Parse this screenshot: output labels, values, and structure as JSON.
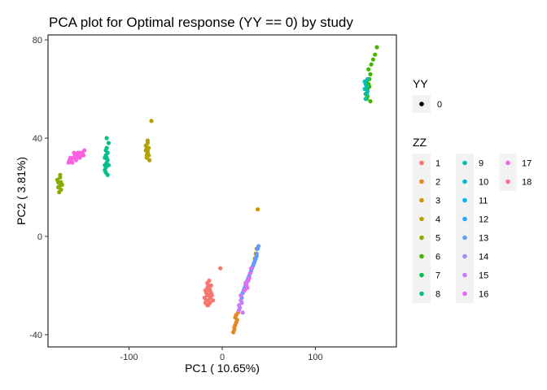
{
  "chart_data": {
    "type": "scatter",
    "title": "PCA plot for Optimal response (YY == 0) by study",
    "xlabel": "PC1 ( 10.65%)",
    "ylabel": "PC2 ( 3.81%)",
    "xlim": [
      -187,
      187
    ],
    "ylim": [
      -45,
      82
    ],
    "x_ticks": [
      -100,
      0,
      100
    ],
    "y_ticks": [
      -40,
      0,
      40,
      80
    ],
    "x_tick_labels": [
      "-100",
      "0",
      "100"
    ],
    "y_tick_labels": [
      "-40",
      "0",
      "40",
      "80"
    ],
    "grid": false,
    "legend_position": "right",
    "legend_shape": {
      "title": "YY",
      "entries": [
        {
          "label": "0"
        }
      ]
    },
    "legend_color": {
      "title": "ZZ",
      "entries": [
        {
          "label": "1",
          "color": "#F8766D"
        },
        {
          "label": "2",
          "color": "#E7851E"
        },
        {
          "label": "3",
          "color": "#D09400"
        },
        {
          "label": "4",
          "color": "#B2A100"
        },
        {
          "label": "5",
          "color": "#89AC00"
        },
        {
          "label": "6",
          "color": "#45B500"
        },
        {
          "label": "7",
          "color": "#00BC51"
        },
        {
          "label": "8",
          "color": "#00C087"
        },
        {
          "label": "9",
          "color": "#00C0B2"
        },
        {
          "label": "10",
          "color": "#00BCD6"
        },
        {
          "label": "11",
          "color": "#00B3F2"
        },
        {
          "label": "12",
          "color": "#29A3FF"
        },
        {
          "label": "13",
          "color": "#619CFF"
        },
        {
          "label": "14",
          "color": "#9C8DFF"
        },
        {
          "label": "15",
          "color": "#C77CFF"
        },
        {
          "label": "16",
          "color": "#E46DF6"
        },
        {
          "label": "17",
          "color": "#F763E0"
        },
        {
          "label": "18",
          "color": "#FF66A8"
        }
      ]
    },
    "series": [
      {
        "name": "1",
        "color": "#F8766D",
        "points": [
          [
            -15,
            -20
          ],
          [
            -14,
            -22
          ],
          [
            -16,
            -24
          ],
          [
            -13,
            -25
          ],
          [
            -17,
            -26
          ],
          [
            -12,
            -23
          ],
          [
            -18,
            -22
          ],
          [
            -15,
            -28
          ],
          [
            -14,
            -21
          ],
          [
            -16,
            -19
          ],
          [
            -13,
            -27
          ],
          [
            -19,
            -25
          ],
          [
            -11,
            -24
          ],
          [
            -15,
            -26
          ],
          [
            -17,
            -23
          ],
          [
            -14,
            -18
          ],
          [
            -16,
            -28
          ],
          [
            -12,
            -20
          ],
          [
            -18,
            -27
          ],
          [
            -13,
            -22
          ],
          [
            -10,
            -26
          ],
          [
            -15,
            -24
          ],
          [
            -2,
            -13
          ],
          [
            -16,
            -21
          ]
        ]
      },
      {
        "name": "2",
        "color": "#E7851E",
        "points": [
          [
            12,
            -39
          ],
          [
            13,
            -37
          ],
          [
            14,
            -36
          ],
          [
            15,
            -35
          ],
          [
            14,
            -33
          ],
          [
            16,
            -34
          ],
          [
            13,
            -38
          ],
          [
            15,
            -32
          ],
          [
            17,
            -31
          ]
        ]
      },
      {
        "name": "3",
        "color": "#D09400",
        "points": [
          [
            38,
            11
          ],
          [
            37,
            -5
          ],
          [
            36,
            -7
          ],
          [
            35,
            -9
          ]
        ]
      },
      {
        "name": "4",
        "color": "#B2A100",
        "points": [
          [
            -81,
            32
          ],
          [
            -80,
            34
          ],
          [
            -82,
            35
          ],
          [
            -79,
            36
          ],
          [
            -81,
            33
          ],
          [
            -80,
            38
          ],
          [
            -78,
            31
          ],
          [
            -82,
            37
          ],
          [
            -80,
            35
          ],
          [
            -79,
            33
          ],
          [
            -81,
            36
          ],
          [
            -80,
            39
          ],
          [
            -76,
            47
          ]
        ]
      },
      {
        "name": "5",
        "color": "#89AC00",
        "points": [
          [
            -176,
            22
          ],
          [
            -175,
            20
          ],
          [
            -174,
            21
          ],
          [
            -177,
            23
          ],
          [
            -173,
            19
          ],
          [
            -175,
            22
          ],
          [
            -174,
            24
          ],
          [
            -176,
            20
          ],
          [
            -172,
            21
          ],
          [
            -175,
            18
          ],
          [
            -173,
            22
          ],
          [
            -174,
            25
          ]
        ]
      },
      {
        "name": "6",
        "color": "#45B500",
        "points": [
          [
            155,
            56
          ],
          [
            156,
            60
          ],
          [
            157,
            62
          ],
          [
            158,
            64
          ],
          [
            159,
            66
          ],
          [
            160,
            70
          ],
          [
            162,
            72
          ],
          [
            164,
            74
          ],
          [
            166,
            77
          ],
          [
            154,
            58
          ],
          [
            156,
            57
          ],
          [
            155,
            63
          ],
          [
            157,
            68
          ],
          [
            158,
            61
          ],
          [
            159,
            55
          ]
        ]
      },
      {
        "name": "8",
        "color": "#00C087",
        "points": [
          [
            -125,
            28
          ],
          [
            -124,
            30
          ],
          [
            -126,
            32
          ],
          [
            -123,
            34
          ],
          [
            -125,
            26
          ],
          [
            -124,
            36
          ],
          [
            -126,
            29
          ],
          [
            -123,
            31
          ],
          [
            -125,
            33
          ],
          [
            -122,
            38
          ],
          [
            -124,
            40
          ],
          [
            -126,
            27
          ],
          [
            -123,
            25
          ],
          [
            -125,
            35
          ],
          [
            -122,
            29
          ],
          [
            -124,
            32
          ]
        ]
      },
      {
        "name": "9",
        "color": "#00C0B2",
        "points": [
          [
            153,
            60
          ],
          [
            154,
            62
          ],
          [
            155,
            58
          ],
          [
            156,
            64
          ],
          [
            154,
            56
          ],
          [
            155,
            61
          ],
          [
            153,
            63
          ],
          [
            156,
            59
          ]
        ]
      },
      {
        "name": "13",
        "color": "#619CFF",
        "points": [
          [
            21,
            -25
          ],
          [
            22,
            -23
          ],
          [
            24,
            -21
          ],
          [
            26,
            -19
          ],
          [
            28,
            -17
          ],
          [
            30,
            -15
          ],
          [
            32,
            -13
          ],
          [
            34,
            -11
          ],
          [
            36,
            -9
          ],
          [
            37,
            -7
          ],
          [
            38,
            -5
          ],
          [
            39,
            -4
          ],
          [
            23,
            -22
          ],
          [
            25,
            -20
          ],
          [
            27,
            -18
          ],
          [
            29,
            -16
          ],
          [
            31,
            -14
          ],
          [
            33,
            -12
          ],
          [
            35,
            -10
          ],
          [
            37,
            -8
          ]
        ]
      },
      {
        "name": "15",
        "color": "#C77CFF",
        "points": [
          [
            18,
            -28
          ],
          [
            20,
            -26
          ],
          [
            19,
            -29
          ],
          [
            21,
            -27
          ],
          [
            22,
            -31
          ],
          [
            20,
            -24
          ],
          [
            18,
            -30
          ]
        ]
      },
      {
        "name": "16",
        "color": "#E46DF6",
        "points": [
          [
            24,
            -22
          ],
          [
            26,
            -20
          ],
          [
            27,
            -21
          ],
          [
            28,
            -18
          ],
          [
            29,
            -17
          ],
          [
            30,
            -15
          ],
          [
            31,
            -13
          ],
          [
            25,
            -19
          ]
        ]
      },
      {
        "name": "17",
        "color": "#F763E0",
        "points": [
          [
            -165,
            30
          ],
          [
            -162,
            31
          ],
          [
            -160,
            32
          ],
          [
            -158,
            33
          ],
          [
            -156,
            32
          ],
          [
            -154,
            33
          ],
          [
            -152,
            34
          ],
          [
            -150,
            34
          ],
          [
            -148,
            35
          ],
          [
            -163,
            32
          ],
          [
            -161,
            30
          ],
          [
            -157,
            31
          ],
          [
            -155,
            34
          ],
          [
            -153,
            32
          ],
          [
            -151,
            33
          ],
          [
            -149,
            33
          ],
          [
            -159,
            34
          ],
          [
            -164,
            31
          ]
        ]
      }
    ]
  }
}
